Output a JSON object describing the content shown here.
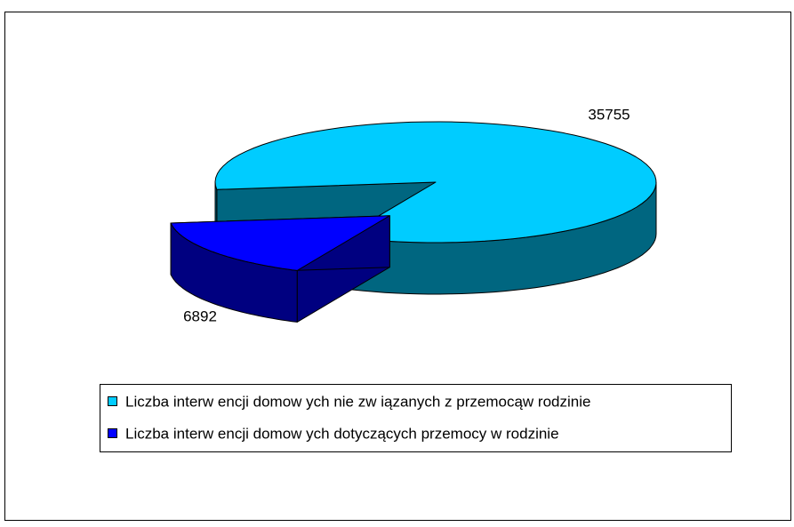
{
  "chart_data": {
    "type": "pie3d",
    "categories": [
      "Liczba interw encji domow ych nie zw iązanych z przemocąw rodzinie",
      "Liczba interw encji domow ych dotyczących przemocy w rodzinie"
    ],
    "values": [
      35755,
      6892
    ],
    "colors": [
      "#00ccff",
      "#0000ff"
    ],
    "side_colors": [
      "#006680",
      "#000080"
    ],
    "legend": "bottom"
  }
}
